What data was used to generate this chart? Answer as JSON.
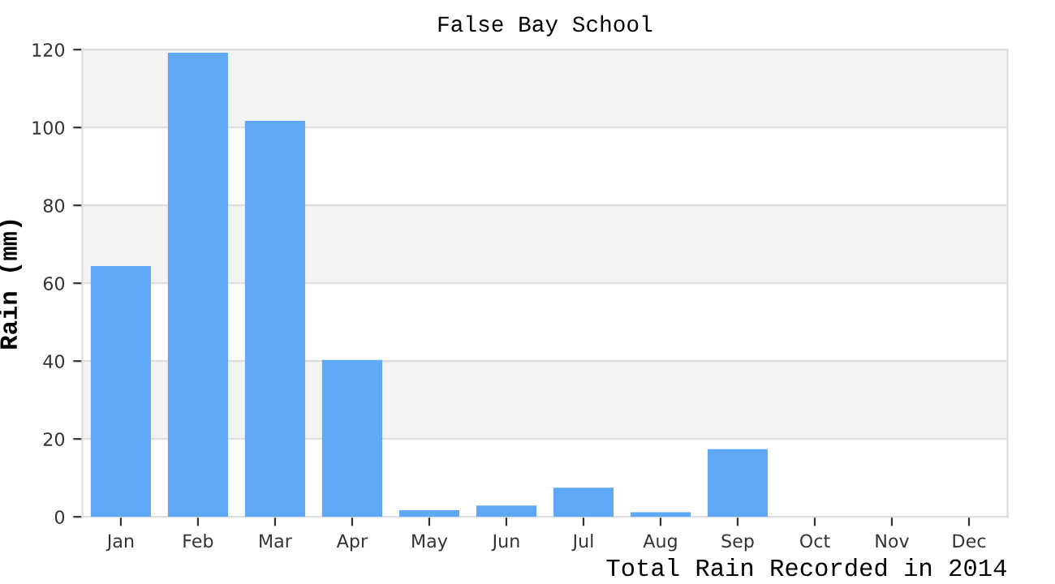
{
  "chart_data": {
    "type": "bar",
    "title": "False Bay School",
    "xlabel": "Total Rain Recorded in 2014",
    "ylabel": "Rain (mm)",
    "categories": [
      "Jan",
      "Feb",
      "Mar",
      "Apr",
      "May",
      "Jun",
      "Jul",
      "Aug",
      "Sep",
      "Oct",
      "Nov",
      "Dec"
    ],
    "values": [
      64.4,
      119.2,
      101.7,
      40.3,
      1.7,
      2.9,
      7.5,
      1.2,
      17.4,
      0,
      0,
      0
    ],
    "color": "#5fa8f5",
    "ylim": [
      0,
      120
    ],
    "yticks": [
      0,
      20,
      40,
      60,
      80,
      100,
      120
    ],
    "grid": "y"
  }
}
